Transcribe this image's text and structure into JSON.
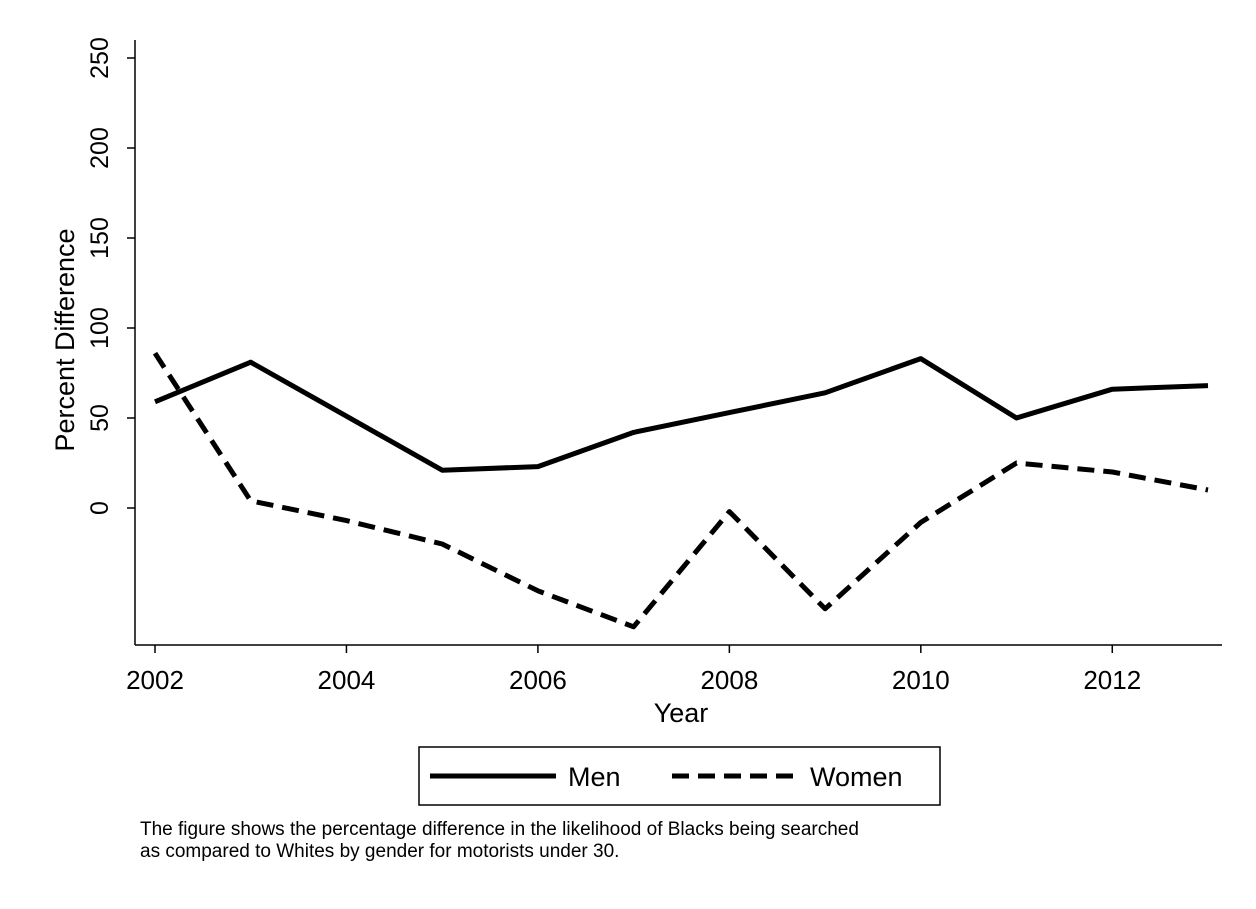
{
  "chart_data": {
    "type": "line",
    "title": "",
    "xlabel": "Year",
    "ylabel": "Percent Difference",
    "xlim": [
      2002,
      2013
    ],
    "ylim": [
      -75,
      260
    ],
    "xticks": [
      2002,
      2004,
      2006,
      2008,
      2010,
      2012
    ],
    "yticks": [
      0,
      50,
      100,
      150,
      200,
      250
    ],
    "grid": false,
    "legend": "bottom-center",
    "x": [
      2002,
      2003,
      2004,
      2005,
      2006,
      2007,
      2008,
      2009,
      2010,
      2011,
      2012,
      2013
    ],
    "series": [
      {
        "name": "Men",
        "style": "solid",
        "color": "#000000",
        "values": [
          59,
          81,
          51,
          21,
          23,
          42,
          53,
          64,
          83,
          50,
          66,
          68
        ]
      },
      {
        "name": "Women",
        "style": "dashed",
        "color": "#000000",
        "values": [
          86,
          4,
          -7,
          -20,
          -46,
          -66,
          -2,
          -56,
          -8,
          25,
          20,
          10
        ]
      }
    ]
  },
  "caption": {
    "line1": "The figure shows the percentage difference in the likelihood of Blacks being searched",
    "line2": "as compared to Whites by gender for motorists under 30."
  }
}
